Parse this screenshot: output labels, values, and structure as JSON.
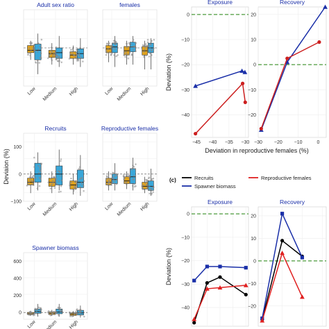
{
  "figure": {
    "panel_label_c": "(c)",
    "shared_ylabel_left": "Deviaion (%)",
    "shared_ylabel_right_top": "Deviation (%)",
    "shared_ylabel_right_bottom": "Deviation (%)",
    "shared_xlabel_right_top": "Deviation in reproductive females (%)",
    "colors": {
      "low_box": "#e0a21c",
      "high_box": "#3aa7d9",
      "exposure_line": "#cc1f1f",
      "recovery_line": "#1a2fa8",
      "recruits_line": "#000000",
      "spawner_line": "#1a2fa8",
      "repro_line": "#e02020",
      "zero_line": "#4a9a3a",
      "title_text": "#1a2fa8"
    }
  },
  "chart_data": [
    {
      "type": "box",
      "title": "Adult sex ratio",
      "categories": [
        "Low",
        "Medium",
        "High"
      ],
      "yticks": [],
      "ylim": [
        -80,
        80
      ],
      "series": [
        {
          "name": "",
          "color": "#e0a21c",
          "boxes": [
            [
              -25,
              -10,
              -5,
              5,
              15
            ],
            [
              -35,
              -20,
              -12,
              -5,
              10
            ],
            [
              -35,
              -22,
              -15,
              -8,
              5
            ]
          ]
        },
        {
          "name": "",
          "color": "#3aa7d9",
          "boxes": [
            [
              -55,
              -25,
              -5,
              8,
              30
            ],
            [
              -40,
              -22,
              -10,
              0,
              25
            ],
            [
              -40,
              -22,
              -12,
              -2,
              20
            ]
          ]
        }
      ]
    },
    {
      "type": "box",
      "title": "females",
      "categories": [
        "Low",
        "Medium",
        "High"
      ],
      "yticks": [],
      "ylim": [
        -80,
        80
      ],
      "series": [
        {
          "name": "",
          "color": "#e0a21c",
          "boxes": [
            [
              -30,
              -10,
              -2,
              5,
              15
            ],
            [
              -35,
              -15,
              -6,
              3,
              15
            ],
            [
              -45,
              -15,
              -6,
              3,
              15
            ]
          ]
        },
        {
          "name": "",
          "color": "#3aa7d9",
          "boxes": [
            [
              -40,
              -10,
              2,
              10,
              25
            ],
            [
              -35,
              -8,
              2,
              12,
              25
            ],
            [
              -45,
              -10,
              0,
              10,
              20
            ]
          ]
        }
      ]
    },
    {
      "type": "box",
      "title": "Recruits",
      "categories": [
        "Low",
        "Medium",
        "High"
      ],
      "yticks": [
        "100",
        "0",
        "−100"
      ],
      "ylim": [
        -100,
        150
      ],
      "series": [
        {
          "name": "",
          "color": "#e0a21c",
          "boxes": [
            [
              -70,
              -40,
              -30,
              -15,
              10
            ],
            [
              -70,
              -45,
              -30,
              -15,
              10
            ],
            [
              -75,
              -55,
              -40,
              -25,
              0
            ]
          ]
        },
        {
          "name": "",
          "color": "#3aa7d9",
          "boxes": [
            [
              -60,
              -30,
              0,
              40,
              80
            ],
            [
              -60,
              -40,
              0,
              30,
              90
            ],
            [
              -80,
              -50,
              -30,
              15,
              70
            ]
          ]
        }
      ]
    },
    {
      "type": "box",
      "title": "Reproductive females",
      "categories": [
        "Low",
        "Medium",
        "High"
      ],
      "yticks": [],
      "ylim": [
        -100,
        150
      ],
      "series": [
        {
          "name": "",
          "color": "#e0a21c",
          "boxes": [
            [
              -60,
              -40,
              -30,
              -15,
              10
            ],
            [
              -55,
              -35,
              -25,
              -10,
              10
            ],
            [
              -70,
              -55,
              -45,
              -30,
              -10
            ]
          ]
        },
        {
          "name": "",
          "color": "#3aa7d9",
          "boxes": [
            [
              -60,
              -35,
              -20,
              0,
              40
            ],
            [
              -60,
              -35,
              -10,
              20,
              60
            ],
            [
              -80,
              -60,
              -45,
              -25,
              20
            ]
          ]
        }
      ]
    },
    {
      "type": "box",
      "title": "Spawner biomass",
      "categories": [
        "Low",
        "Medium",
        "High"
      ],
      "yticks": [
        "600",
        "400",
        "200",
        "0"
      ],
      "ylim": [
        -80,
        700
      ],
      "series": [
        {
          "name": "",
          "color": "#e0a21c",
          "boxes": [
            [
              -40,
              -25,
              -15,
              0,
              20
            ],
            [
              -40,
              -25,
              -10,
              5,
              30
            ],
            [
              -50,
              -35,
              -20,
              -5,
              15
            ]
          ]
        },
        {
          "name": "",
          "color": "#3aa7d9",
          "boxes": [
            [
              -50,
              -10,
              10,
              40,
              100
            ],
            [
              -50,
              -15,
              5,
              40,
              100
            ],
            [
              -60,
              -30,
              -5,
              25,
              80
            ]
          ]
        }
      ]
    },
    {
      "type": "line",
      "title": "Exposure",
      "xlim": [
        -46.5,
        -29
      ],
      "ylim": [
        -49,
        3
      ],
      "xticks": [
        "−45",
        "−40",
        "−35",
        "−30"
      ],
      "xtick_values": [
        -45,
        -40,
        -35,
        -30
      ],
      "yticks": [
        "0",
        "−10",
        "−20",
        "−30",
        "−40"
      ],
      "ytick_values": [
        0,
        -10,
        -20,
        -30,
        -40
      ],
      "series": [
        {
          "name": "",
          "color": "#1a2fa8",
          "marker": "triangle",
          "x": [
            -45.3,
            -31.0,
            -30.1
          ],
          "y": [
            -28.5,
            -22.5,
            -23.0
          ]
        },
        {
          "name": "",
          "color": "#cc1f1f",
          "marker": "circle",
          "x": [
            -45.3,
            -30.8,
            -30.0
          ],
          "y": [
            -47.5,
            -27.5,
            -35.0
          ]
        }
      ]
    },
    {
      "type": "line",
      "title": "Recovery",
      "xlim": [
        -30,
        4
      ],
      "ylim": [
        -29,
        23
      ],
      "xticks": [
        "−30",
        "−20",
        "−10",
        "0"
      ],
      "xtick_values": [
        -30,
        -20,
        -10,
        0
      ],
      "yticks": [
        "20",
        "10",
        "0",
        "−10",
        "−20"
      ],
      "ytick_values": [
        20,
        10,
        0,
        -10,
        -20
      ],
      "series": [
        {
          "name": "",
          "color": "#1a2fa8",
          "marker": "triangle",
          "x": [
            -28.5,
            -15.5,
            3.5
          ],
          "y": [
            -26.0,
            1.0,
            23.0
          ]
        },
        {
          "name": "",
          "color": "#cc1f1f",
          "marker": "circle",
          "x": [
            -28.5,
            -15.5,
            0.5
          ],
          "y": [
            -25.5,
            2.5,
            9.0
          ]
        }
      ]
    },
    {
      "type": "line",
      "title": "Exposure",
      "categories": [
        "",
        "",
        "",
        "",
        ""
      ],
      "ylim": [
        -48,
        3
      ],
      "yticks": [
        "0",
        "−10",
        "−20",
        "−30",
        "−40"
      ],
      "ytick_values": [
        0,
        -10,
        -20,
        -30,
        -40
      ],
      "series": [
        {
          "name": "Recruits",
          "color": "#000000",
          "marker": "circle",
          "values": [
            -46.5,
            -29.5,
            -27.0,
            null,
            -34.5
          ]
        },
        {
          "name": "Spawner biomass",
          "color": "#1a2fa8",
          "marker": "square",
          "values": [
            -28.5,
            -22.5,
            -22.5,
            null,
            -23.0
          ]
        },
        {
          "name": "Reproductive females",
          "color": "#e02020",
          "marker": "triangle",
          "values": [
            -45.0,
            -32.0,
            -31.5,
            null,
            -30.5
          ]
        }
      ]
    },
    {
      "type": "line",
      "title": "Recovery",
      "categories": [
        "",
        "",
        "",
        ""
      ],
      "ylim": [
        -29,
        24
      ],
      "yticks": [
        "20",
        "10",
        "0",
        "−10",
        "−20"
      ],
      "ytick_values": [
        20,
        10,
        0,
        -10,
        -20
      ],
      "series": [
        {
          "name": "Recruits",
          "color": "#000000",
          "marker": "circle",
          "values": [
            -26.0,
            9.0,
            2.0,
            null
          ]
        },
        {
          "name": "Spawner biomass",
          "color": "#1a2fa8",
          "marker": "square",
          "values": [
            -25.5,
            21.0,
            1.5,
            null
          ]
        },
        {
          "name": "Reproductive females",
          "color": "#e02020",
          "marker": "triangle",
          "values": [
            -26.5,
            3.5,
            -16.0,
            null
          ]
        }
      ]
    }
  ]
}
